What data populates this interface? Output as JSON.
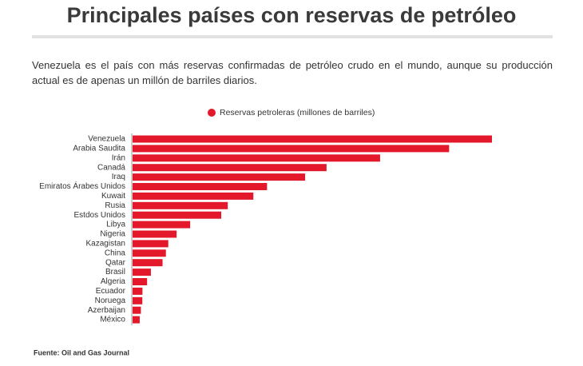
{
  "chart_data": {
    "type": "bar",
    "orientation": "horizontal",
    "title": "Principales países con reservas de petróleo",
    "subtitle": "Venezuela es el país con más reservas confirmadas de petróleo crudo en el mundo, aunque su producción actual es de apenas un millón de barriles diarios.",
    "categories": [
      "Venezuela",
      "Arabia Saudita",
      "Irán",
      "Canadá",
      "Iraq",
      "Emiratos Árabes Unidos",
      "Kuwait",
      "Rusia",
      "Estdos Unidos",
      "Libya",
      "Nigeria",
      "Kazagistan",
      "China",
      "Qatar",
      "Brasil",
      "Algeria",
      "Ecuador",
      "Noruega",
      "Azerbaijan",
      "México"
    ],
    "series": [
      {
        "name": "Reservas petroleras (millones de barriles)",
        "color": "#e3192b",
        "values": [
          302000,
          266000,
          208000,
          163000,
          145000,
          113000,
          101500,
          80000,
          74500,
          48400,
          37000,
          30000,
          28000,
          25200,
          15400,
          12200,
          8300,
          8200,
          7000,
          6000
        ]
      }
    ],
    "source": "Fuente: Oil and Gas Journal"
  }
}
